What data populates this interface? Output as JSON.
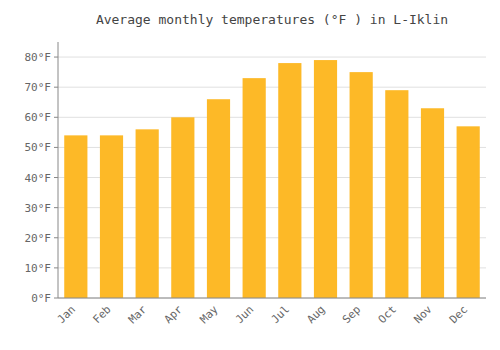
{
  "chart_data": {
    "type": "bar",
    "title": "Average monthly temperatures (°F ) in L-Iklin",
    "categories": [
      "Jan",
      "Feb",
      "Mar",
      "Apr",
      "May",
      "Jun",
      "Jul",
      "Aug",
      "Sep",
      "Oct",
      "Nov",
      "Dec"
    ],
    "values": [
      54,
      54,
      56,
      60,
      66,
      73,
      78,
      79,
      75,
      69,
      63,
      57
    ],
    "color": "#FDB927",
    "ylim": [
      0,
      85
    ],
    "yticks": [
      {
        "value": 0,
        "label": "0°F"
      },
      {
        "value": 10,
        "label": "10°F"
      },
      {
        "value": 20,
        "label": "20°F"
      },
      {
        "value": 30,
        "label": "30°F"
      },
      {
        "value": 40,
        "label": "40°F"
      },
      {
        "value": 50,
        "label": "50°F"
      },
      {
        "value": 60,
        "label": "60°F"
      },
      {
        "value": 70,
        "label": "70°F"
      },
      {
        "value": 80,
        "label": "80°F"
      }
    ],
    "grid": true
  }
}
